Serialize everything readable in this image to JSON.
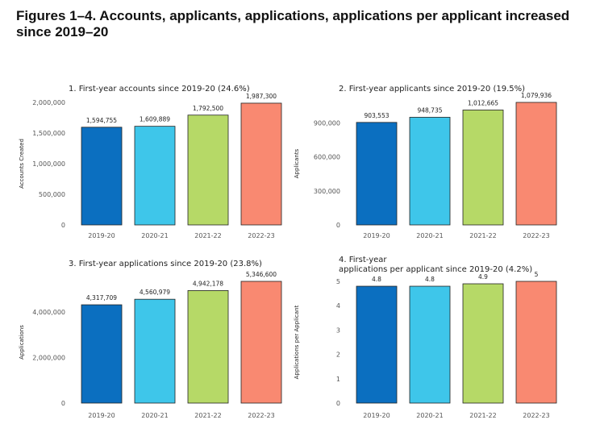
{
  "page": {
    "title": "Figures 1–4. Accounts, applicants, applications, applications per applicant increased since 2019–20"
  },
  "colors": {
    "bar_colors": [
      "#0b6fc0",
      "#3ec6ea",
      "#b6d967",
      "#f98971"
    ],
    "bar_edge": "#222222",
    "axis": "#333333",
    "text": "#222222",
    "tick_text": "#555555"
  },
  "chart_data": [
    {
      "type": "bar",
      "title": "1. First-year accounts since 2019-20 (24.6%)",
      "ylabel": "Accounts Created",
      "categories": [
        "2019-20",
        "2020-21",
        "2021-22",
        "2022-23"
      ],
      "values": [
        1594755,
        1609889,
        1792500,
        1987300
      ],
      "value_labels": [
        "1,594,755",
        "1,609,889",
        "1,792,500",
        "1,987,300"
      ],
      "ylim": [
        0,
        2000000
      ],
      "yticks": [
        0,
        500000,
        1000000,
        1500000,
        2000000
      ],
      "ytick_labels": [
        "0",
        "500,000",
        "1,000,000",
        "1,500,000",
        "2,000,000"
      ],
      "grid": false
    },
    {
      "type": "bar",
      "title": "2. First-year applicants since 2019-20 (19.5%)",
      "ylabel": "Applicants",
      "categories": [
        "2019-20",
        "2020-21",
        "2021-22",
        "2022-23"
      ],
      "values": [
        903553,
        948735,
        1012665,
        1079936
      ],
      "value_labels": [
        "903,553",
        "948,735",
        "1,012,665",
        "1,079,936"
      ],
      "ylim": [
        0,
        1079936
      ],
      "yticks": [
        0,
        300000,
        600000,
        900000
      ],
      "ytick_labels": [
        "0",
        "300,000",
        "600,000",
        "900,000"
      ],
      "grid": false
    },
    {
      "type": "bar",
      "title": "3. First-year applications since 2019-20 (23.8%)",
      "ylabel": "Applications",
      "categories": [
        "2019-20",
        "2020-21",
        "2021-22",
        "2022-23"
      ],
      "values": [
        4317709,
        4560979,
        4942178,
        5346600
      ],
      "value_labels": [
        "4,317,709",
        "4,560,979",
        "4,942,178",
        "5,346,600"
      ],
      "ylim": [
        0,
        5346600
      ],
      "yticks": [
        0,
        2000000,
        4000000
      ],
      "ytick_labels": [
        "0",
        "2,000,000",
        "4,000,000"
      ],
      "grid": false
    },
    {
      "type": "bar",
      "title": "4. First-year\napplications per applicant since 2019-20 (4.2%)",
      "ylabel": "Applications per Applicant",
      "categories": [
        "2019-20",
        "2020-21",
        "2021-22",
        "2022-23"
      ],
      "values": [
        4.8,
        4.8,
        4.9,
        5
      ],
      "value_labels": [
        "4.8",
        "4.8",
        "4.9",
        "5"
      ],
      "ylim": [
        0,
        5
      ],
      "yticks": [
        0,
        1,
        2,
        3,
        4,
        5
      ],
      "ytick_labels": [
        "0",
        "1",
        "2",
        "3",
        "4",
        "5"
      ],
      "grid": false
    }
  ]
}
